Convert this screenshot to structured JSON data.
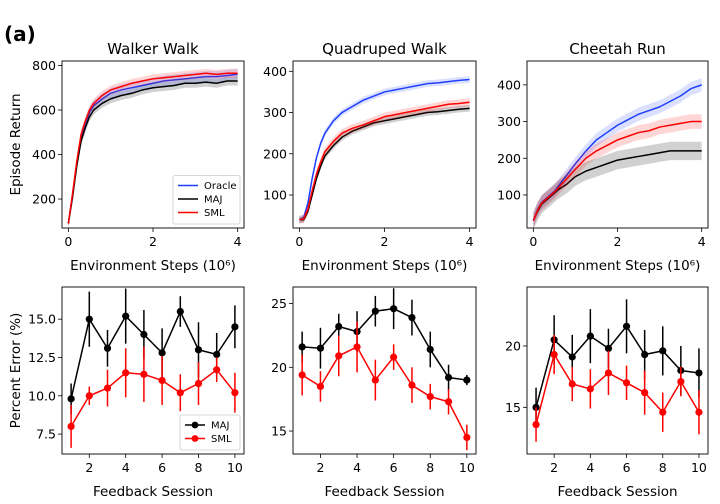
{
  "figure": {
    "panel_label": "(a)"
  },
  "chart_data": [
    {
      "type": "line",
      "title": "Walker Walk",
      "xlabel": "Environment Steps (10⁶)",
      "ylabel": "Episode Return",
      "xlim": [
        -0.15,
        4.15
      ],
      "ylim": [
        70,
        820
      ],
      "xticks": [
        0,
        2,
        4
      ],
      "yticks": [
        200,
        400,
        600,
        800
      ],
      "legend": {
        "position": "lower-right",
        "entries": [
          "Oracle",
          "MAJ",
          "SML"
        ]
      },
      "x": [
        0,
        0.1,
        0.2,
        0.3,
        0.4,
        0.5,
        0.6,
        0.8,
        1.0,
        1.25,
        1.5,
        1.75,
        2.0,
        2.25,
        2.5,
        2.75,
        3.0,
        3.25,
        3.5,
        3.75,
        4.0
      ],
      "series": [
        {
          "name": "Oracle",
          "color": "#1f3fff",
          "values": [
            90,
            220,
            360,
            480,
            540,
            590,
            620,
            650,
            675,
            690,
            700,
            710,
            720,
            730,
            735,
            740,
            745,
            750,
            750,
            755,
            760
          ],
          "band": 25
        },
        {
          "name": "MAJ",
          "color": "#000000",
          "values": [
            90,
            210,
            350,
            460,
            520,
            570,
            600,
            630,
            650,
            665,
            675,
            690,
            700,
            705,
            710,
            720,
            720,
            725,
            720,
            730,
            730
          ],
          "band": 20
        },
        {
          "name": "SML",
          "color": "#ff0000",
          "values": [
            90,
            225,
            370,
            490,
            550,
            600,
            630,
            665,
            690,
            705,
            720,
            730,
            740,
            745,
            750,
            755,
            760,
            765,
            760,
            765,
            765
          ],
          "band": 20
        }
      ]
    },
    {
      "type": "line",
      "title": "Quadruped Walk",
      "xlabel": "Environment Steps (10⁶)",
      "ylabel": "",
      "xlim": [
        -0.15,
        4.15
      ],
      "ylim": [
        20,
        425
      ],
      "xticks": [
        0,
        2,
        4
      ],
      "yticks": [
        100,
        200,
        300,
        400
      ],
      "x": [
        0,
        0.1,
        0.2,
        0.3,
        0.4,
        0.5,
        0.6,
        0.8,
        1.0,
        1.25,
        1.5,
        1.75,
        2.0,
        2.25,
        2.5,
        2.75,
        3.0,
        3.25,
        3.5,
        3.75,
        4.0
      ],
      "series": [
        {
          "name": "Oracle",
          "color": "#1f3fff",
          "values": [
            40,
            45,
            80,
            140,
            190,
            225,
            250,
            280,
            300,
            315,
            330,
            340,
            350,
            355,
            360,
            365,
            370,
            372,
            375,
            378,
            380
          ],
          "band": 8
        },
        {
          "name": "MAJ",
          "color": "#000000",
          "values": [
            40,
            40,
            60,
            100,
            140,
            170,
            195,
            220,
            240,
            255,
            265,
            275,
            280,
            285,
            290,
            295,
            300,
            302,
            305,
            308,
            310
          ],
          "band": 8
        },
        {
          "name": "SML",
          "color": "#ff0000",
          "values": [
            40,
            42,
            65,
            110,
            150,
            180,
            205,
            230,
            250,
            262,
            270,
            280,
            290,
            295,
            300,
            305,
            310,
            315,
            320,
            322,
            325
          ],
          "band": 10
        }
      ]
    },
    {
      "type": "line",
      "title": "Cheetah Run",
      "xlabel": "Environment Steps (10⁶)",
      "ylabel": "",
      "xlim": [
        -0.15,
        4.15
      ],
      "ylim": [
        10,
        465
      ],
      "xticks": [
        0,
        2,
        4
      ],
      "yticks": [
        100,
        200,
        300,
        400
      ],
      "x": [
        0,
        0.1,
        0.2,
        0.3,
        0.4,
        0.5,
        0.6,
        0.8,
        1.0,
        1.25,
        1.5,
        1.75,
        2.0,
        2.25,
        2.5,
        2.75,
        3.0,
        3.25,
        3.5,
        3.75,
        4.0
      ],
      "series": [
        {
          "name": "Oracle",
          "color": "#1f3fff",
          "values": [
            30,
            60,
            80,
            90,
            100,
            110,
            125,
            155,
            185,
            220,
            250,
            270,
            290,
            305,
            320,
            330,
            340,
            355,
            370,
            390,
            400
          ],
          "band": 18
        },
        {
          "name": "MAJ",
          "color": "#000000",
          "values": [
            30,
            55,
            75,
            85,
            95,
            105,
            115,
            130,
            150,
            165,
            175,
            185,
            195,
            200,
            205,
            210,
            215,
            220,
            220,
            220,
            220
          ],
          "band": 25
        },
        {
          "name": "SML",
          "color": "#ff0000",
          "values": [
            30,
            58,
            78,
            88,
            98,
            108,
            120,
            145,
            170,
            200,
            220,
            235,
            250,
            260,
            270,
            275,
            285,
            290,
            295,
            300,
            300
          ],
          "band": 20
        }
      ]
    },
    {
      "type": "line",
      "title": "",
      "xlabel": "Feedback Session",
      "ylabel": "Percent Error (%)",
      "xlim": [
        0.5,
        10.5
      ],
      "ylim": [
        6.2,
        17.1
      ],
      "xticks": [
        2,
        4,
        6,
        8,
        10
      ],
      "yticks": [
        7.5,
        10.0,
        12.5,
        15.0
      ],
      "ytick_labels": [
        "7.5",
        "10.0",
        "12.5",
        "15.0"
      ],
      "legend": {
        "position": "lower-right",
        "entries": [
          "MAJ",
          "SML"
        ]
      },
      "x": [
        1,
        2,
        3,
        4,
        5,
        6,
        7,
        8,
        9,
        10
      ],
      "series": [
        {
          "name": "MAJ",
          "color": "#000000",
          "values": [
            9.8,
            15.0,
            13.1,
            15.2,
            14.0,
            12.8,
            15.5,
            13.0,
            12.7,
            14.5
          ],
          "errors": [
            1.0,
            1.8,
            1.2,
            1.8,
            1.6,
            1.6,
            1.0,
            1.8,
            1.4,
            1.4
          ]
        },
        {
          "name": "SML",
          "color": "#ff0000",
          "values": [
            8.0,
            10.0,
            10.5,
            11.5,
            11.4,
            11.0,
            10.2,
            10.8,
            11.7,
            10.2
          ],
          "errors": [
            1.4,
            0.6,
            1.2,
            1.6,
            1.8,
            1.6,
            1.2,
            1.4,
            0.8,
            1.3
          ]
        }
      ]
    },
    {
      "type": "line",
      "title": "",
      "xlabel": "Feedback Session",
      "ylabel": "",
      "xlim": [
        0.5,
        10.5
      ],
      "ylim": [
        13.2,
        26.3
      ],
      "xticks": [
        2,
        4,
        6,
        8,
        10
      ],
      "yticks": [
        15,
        20,
        25
      ],
      "x": [
        1,
        2,
        3,
        4,
        5,
        6,
        7,
        8,
        9,
        10
      ],
      "series": [
        {
          "name": "MAJ",
          "color": "#000000",
          "values": [
            21.6,
            21.5,
            23.2,
            22.8,
            24.4,
            24.6,
            23.9,
            21.4,
            19.2,
            19.0
          ],
          "errors": [
            1.2,
            1.6,
            1.0,
            1.6,
            1.2,
            1.6,
            1.4,
            1.4,
            1.0,
            0.4
          ]
        },
        {
          "name": "SML",
          "color": "#ff0000",
          "values": [
            19.4,
            18.5,
            20.9,
            21.6,
            19.0,
            20.8,
            18.6,
            17.7,
            17.3,
            14.5
          ],
          "errors": [
            1.6,
            1.2,
            1.6,
            2.0,
            1.6,
            1.0,
            1.4,
            1.0,
            1.0,
            1.0
          ]
        }
      ]
    },
    {
      "type": "line",
      "title": "",
      "xlabel": "Feedback Session",
      "ylabel": "",
      "xlim": [
        0.5,
        10.5
      ],
      "ylim": [
        11.2,
        24.8
      ],
      "xticks": [
        2,
        4,
        6,
        8,
        10
      ],
      "yticks": [
        15,
        20
      ],
      "x": [
        1,
        2,
        3,
        4,
        5,
        6,
        7,
        8,
        9,
        10
      ],
      "series": [
        {
          "name": "MAJ",
          "color": "#000000",
          "values": [
            15.0,
            20.5,
            19.1,
            20.8,
            19.8,
            21.6,
            19.3,
            19.6,
            18.0,
            17.8
          ],
          "errors": [
            1.6,
            2.0,
            1.8,
            2.2,
            1.6,
            2.2,
            2.0,
            2.0,
            2.0,
            2.0
          ]
        },
        {
          "name": "SML",
          "color": "#ff0000",
          "values": [
            13.6,
            19.3,
            16.9,
            16.5,
            17.8,
            17.0,
            16.2,
            14.6,
            17.1,
            14.6
          ],
          "errors": [
            1.4,
            1.6,
            1.4,
            1.6,
            1.8,
            1.4,
            1.8,
            1.6,
            1.2,
            1.8
          ]
        }
      ]
    }
  ]
}
